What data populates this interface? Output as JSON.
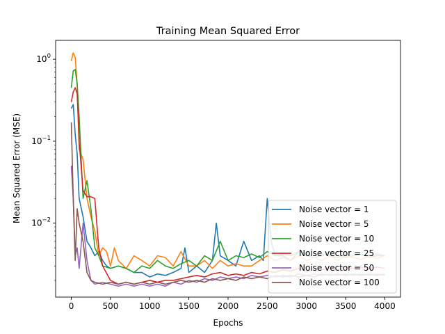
{
  "chart_data": {
    "type": "line",
    "title": "Training Mean Squared Error",
    "xlabel": "Epochs",
    "ylabel": "Mean Squared Error (MSE)",
    "xlim": [
      -200,
      4200
    ],
    "ylim": [
      0.00125,
      1.7
    ],
    "yscale": "log",
    "grid": false,
    "legend_position": "lower-right",
    "x_ticks": [
      {
        "value": 0,
        "label": "0"
      },
      {
        "value": 500,
        "label": "500"
      },
      {
        "value": 1000,
        "label": "1000"
      },
      {
        "value": 1500,
        "label": "1500"
      },
      {
        "value": 2000,
        "label": "2000"
      },
      {
        "value": 2500,
        "label": "2500"
      },
      {
        "value": 3000,
        "label": "3000"
      },
      {
        "value": 3500,
        "label": "3500"
      },
      {
        "value": 4000,
        "label": "4000"
      }
    ],
    "y_ticks": [
      {
        "value": 0.01,
        "base": "10",
        "exp": "−2"
      },
      {
        "value": 0.1,
        "base": "10",
        "exp": "−1"
      },
      {
        "value": 1,
        "base": "10",
        "exp": "0"
      }
    ],
    "series": [
      {
        "name": "Noise vector = 1",
        "color": "#1f77b4",
        "x": [
          0,
          25,
          50,
          75,
          100,
          150,
          200,
          250,
          300,
          350,
          400,
          450,
          500,
          600,
          700,
          800,
          900,
          1000,
          1100,
          1200,
          1300,
          1400,
          1450,
          1500,
          1600,
          1700,
          1800,
          1850,
          1900,
          2000,
          2100,
          2200,
          2300,
          2400,
          2450,
          2500,
          2550,
          2600,
          2700,
          2800,
          2900,
          3000,
          3100,
          3200,
          3300,
          3400,
          3500,
          3600,
          3700,
          3800,
          3900,
          4000
        ],
        "y": [
          0.25,
          0.28,
          0.12,
          0.07,
          0.02,
          0.012,
          0.006,
          0.005,
          0.004,
          0.0045,
          0.0035,
          0.003,
          0.0028,
          0.003,
          0.0028,
          0.0025,
          0.0025,
          0.0022,
          0.0024,
          0.0023,
          0.0025,
          0.0028,
          0.005,
          0.0025,
          0.003,
          0.0025,
          0.0035,
          0.01,
          0.004,
          0.0035,
          0.003,
          0.006,
          0.0035,
          0.004,
          0.0035,
          0.02,
          0.006,
          0.004,
          0.004,
          0.0035,
          0.0045,
          0.004,
          0.0038,
          0.004,
          0.0045,
          0.004,
          0.0038,
          0.004,
          0.0042,
          0.0038,
          0.004,
          0.004
        ]
      },
      {
        "name": "Noise vector = 5",
        "color": "#ff7f0e",
        "x": [
          0,
          25,
          50,
          75,
          100,
          150,
          200,
          250,
          300,
          350,
          400,
          450,
          500,
          550,
          600,
          700,
          800,
          900,
          1000,
          1100,
          1200,
          1300,
          1400,
          1500,
          1600,
          1700,
          1800,
          1900,
          2000,
          2100,
          2200,
          2300,
          2400,
          2500,
          2600,
          2700,
          2800,
          2900,
          3000,
          3100,
          3200,
          3300,
          3400,
          3500,
          3600,
          3700,
          3800,
          3900,
          4000
        ],
        "y": [
          0.95,
          1.2,
          1.05,
          0.5,
          0.08,
          0.06,
          0.02,
          0.012,
          0.008,
          0.004,
          0.005,
          0.0045,
          0.003,
          0.005,
          0.0035,
          0.0028,
          0.004,
          0.0035,
          0.003,
          0.004,
          0.0038,
          0.003,
          0.0045,
          0.003,
          0.003,
          0.0035,
          0.0028,
          0.0035,
          0.003,
          0.0032,
          0.003,
          0.003,
          0.0035,
          0.004,
          0.0035,
          0.0038,
          0.0035,
          0.004,
          0.0035,
          0.0038,
          0.0035,
          0.004,
          0.0035,
          0.004,
          0.0038,
          0.0036,
          0.004,
          0.0037,
          0.004
        ]
      },
      {
        "name": "Noise vector = 10",
        "color": "#2ca02c",
        "x": [
          0,
          25,
          50,
          75,
          100,
          150,
          200,
          250,
          300,
          350,
          400,
          500,
          600,
          700,
          800,
          900,
          1000,
          1100,
          1200,
          1300,
          1400,
          1500,
          1600,
          1700,
          1800,
          1900,
          2000,
          2100,
          2200,
          2300,
          2400,
          2500,
          2600,
          2700,
          2800,
          2900,
          3000,
          3100,
          3200,
          3300,
          3400,
          3500,
          3600,
          3700,
          3800,
          3900,
          4000
        ],
        "y": [
          0.45,
          0.72,
          0.75,
          0.5,
          0.2,
          0.02,
          0.033,
          0.015,
          0.005,
          0.004,
          0.003,
          0.0028,
          0.003,
          0.0028,
          0.0025,
          0.003,
          0.0028,
          0.0035,
          0.003,
          0.0028,
          0.0032,
          0.0035,
          0.003,
          0.004,
          0.0035,
          0.006,
          0.0035,
          0.004,
          0.0038,
          0.0042,
          0.0038,
          0.0045,
          0.004,
          0.0042,
          0.004,
          0.0045,
          0.0042,
          0.004,
          0.0042,
          0.004,
          0.0038,
          0.0042,
          0.004,
          0.0041,
          0.004,
          0.0042,
          0.004
        ]
      },
      {
        "name": "Noise vector = 25",
        "color": "#d62728",
        "x": [
          0,
          25,
          50,
          75,
          100,
          150,
          200,
          250,
          300,
          350,
          400,
          500,
          600,
          700,
          800,
          900,
          1000,
          1100,
          1200,
          1300,
          1400,
          1500,
          1600,
          1700,
          1800,
          1900,
          2000,
          2100,
          2200,
          2300,
          2400,
          2500,
          2600,
          2700,
          2800,
          2900,
          3000,
          3100,
          3200,
          3300,
          3400,
          3500,
          3600,
          3700,
          3800,
          3900,
          4000
        ],
        "y": [
          0.3,
          0.4,
          0.45,
          0.38,
          0.1,
          0.025,
          0.021,
          0.021,
          0.02,
          0.005,
          0.003,
          0.002,
          0.0018,
          0.0019,
          0.0018,
          0.0019,
          0.002,
          0.0019,
          0.002,
          0.002,
          0.0021,
          0.0022,
          0.0023,
          0.0022,
          0.0024,
          0.0025,
          0.0023,
          0.0024,
          0.0023,
          0.0025,
          0.0024,
          0.0026,
          0.0025,
          0.0027,
          0.0026,
          0.0028,
          0.0026,
          0.0028,
          0.0027,
          0.0028,
          0.0027,
          0.0029,
          0.0028,
          0.0029,
          0.0028,
          0.0029,
          0.0028
        ]
      },
      {
        "name": "Noise vector = 50",
        "color": "#9467bd",
        "x": [
          0,
          25,
          50,
          75,
          100,
          150,
          200,
          250,
          300,
          400,
          500,
          600,
          700,
          800,
          900,
          1000,
          1100,
          1200,
          1300,
          1400,
          1500,
          1600,
          1700,
          1800,
          1900,
          2000,
          2100,
          2200,
          2300,
          2400,
          2500,
          2600,
          2700,
          2800,
          2900,
          3000,
          3100,
          3200,
          3300,
          3400,
          3500,
          3600,
          3700,
          3800,
          3900,
          4000
        ],
        "y": [
          0.05,
          0.02,
          0.004,
          0.005,
          0.0028,
          0.01,
          0.0035,
          0.002,
          0.0018,
          0.0019,
          0.0018,
          0.0017,
          0.0018,
          0.0017,
          0.0018,
          0.0017,
          0.0018,
          0.0017,
          0.0019,
          0.0018,
          0.002,
          0.0019,
          0.0021,
          0.002,
          0.0022,
          0.0021,
          0.0022,
          0.0021,
          0.0023,
          0.0022,
          0.0023,
          0.0022,
          0.0023,
          0.0022,
          0.0024,
          0.0023,
          0.0024,
          0.0023,
          0.0024,
          0.0023,
          0.0024,
          0.0023,
          0.0024,
          0.0023,
          0.0024,
          0.0023
        ]
      },
      {
        "name": "Noise vector = 100",
        "color": "#8c564b",
        "x": [
          0,
          25,
          50,
          75,
          100,
          150,
          200,
          250,
          300,
          400,
          500,
          600,
          700,
          800,
          900,
          1000,
          1100,
          1200,
          1300,
          1400,
          1500,
          1600,
          1700,
          1800,
          1900,
          2000,
          2100,
          2200,
          2300,
          2400,
          2500,
          2600,
          2700,
          2800,
          2900,
          3000,
          3100,
          3200,
          3300,
          3400,
          3500,
          3600,
          3700,
          3800,
          3900,
          4000
        ],
        "y": [
          0.17,
          0.02,
          0.0035,
          0.015,
          0.01,
          0.006,
          0.0025,
          0.002,
          0.0019,
          0.0018,
          0.0019,
          0.0018,
          0.0019,
          0.0018,
          0.0019,
          0.0018,
          0.0019,
          0.0018,
          0.0019,
          0.002,
          0.0019,
          0.002,
          0.0019,
          0.0021,
          0.002,
          0.0021,
          0.002,
          0.0022,
          0.0021,
          0.0022,
          0.0021,
          0.0023,
          0.0022,
          0.0023,
          0.0022,
          0.0023,
          0.0022,
          0.0024,
          0.0023,
          0.0024,
          0.0023,
          0.0024,
          0.0023,
          0.0024,
          0.0023,
          0.0024
        ]
      }
    ]
  }
}
